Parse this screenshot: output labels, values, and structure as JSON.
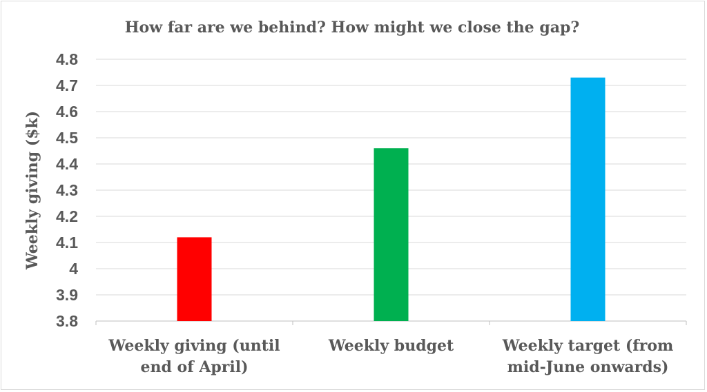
{
  "chart_data": {
    "type": "bar",
    "title": "How far are we behind? How might we close the gap?",
    "ylabel": "Weekly giving ($k)",
    "xlabel": "",
    "categories": [
      [
        "Weekly giving (until",
        "end of April)"
      ],
      [
        "Weekly budget"
      ],
      [
        "Weekly target (from",
        "mid-June onwards)"
      ]
    ],
    "values": [
      4.12,
      4.46,
      4.73
    ],
    "colors": [
      "#ff0000",
      "#00b050",
      "#00b0f0"
    ],
    "ylim": [
      3.8,
      4.8
    ],
    "yticks": [
      "4.8",
      "4.7",
      "4.6",
      "4.5",
      "4.4",
      "4.3",
      "4.2",
      "4.1",
      "4",
      "3.9",
      "3.8"
    ],
    "grid": true,
    "legend": "none"
  }
}
